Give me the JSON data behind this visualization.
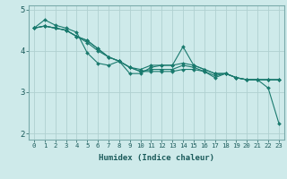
{
  "title": "",
  "xlabel": "Humidex (Indice chaleur)",
  "ylabel": "",
  "background_color": "#ceeaea",
  "grid_color": "#b0d0d0",
  "line_color": "#1a7a6e",
  "xlim": [
    -0.5,
    23.5
  ],
  "ylim": [
    1.85,
    5.1
  ],
  "yticks": [
    2,
    3,
    4,
    5
  ],
  "xtick_labels": [
    "0",
    "1",
    "2",
    "3",
    "4",
    "5",
    "6",
    "7",
    "8",
    "9",
    "10",
    "11",
    "12",
    "13",
    "14",
    "15",
    "16",
    "17",
    "18",
    "19",
    "20",
    "21",
    "22",
    "23"
  ],
  "series": [
    [
      4.55,
      4.75,
      4.62,
      4.55,
      4.45,
      3.95,
      3.7,
      3.65,
      3.75,
      3.45,
      3.45,
      3.6,
      3.65,
      3.65,
      4.1,
      3.65,
      3.55,
      3.45,
      3.45,
      3.35,
      3.3,
      3.3,
      3.1,
      2.25
    ],
    [
      4.55,
      4.6,
      4.55,
      4.5,
      4.35,
      4.2,
      4.0,
      3.85,
      3.75,
      3.6,
      3.55,
      3.65,
      3.65,
      3.65,
      3.7,
      3.65,
      3.55,
      3.45,
      3.45,
      3.35,
      3.3,
      3.3,
      3.3,
      3.3
    ],
    [
      4.55,
      4.6,
      4.55,
      4.5,
      4.35,
      4.25,
      4.05,
      3.85,
      3.75,
      3.6,
      3.5,
      3.55,
      3.55,
      3.55,
      3.65,
      3.6,
      3.5,
      3.4,
      3.45,
      3.35,
      3.3,
      3.3,
      3.3,
      3.3
    ],
    [
      4.55,
      4.6,
      4.55,
      4.5,
      4.35,
      4.25,
      4.05,
      3.85,
      3.75,
      3.6,
      3.5,
      3.5,
      3.5,
      3.5,
      3.55,
      3.55,
      3.5,
      3.35,
      3.45,
      3.35,
      3.3,
      3.3,
      3.3,
      3.3
    ]
  ]
}
